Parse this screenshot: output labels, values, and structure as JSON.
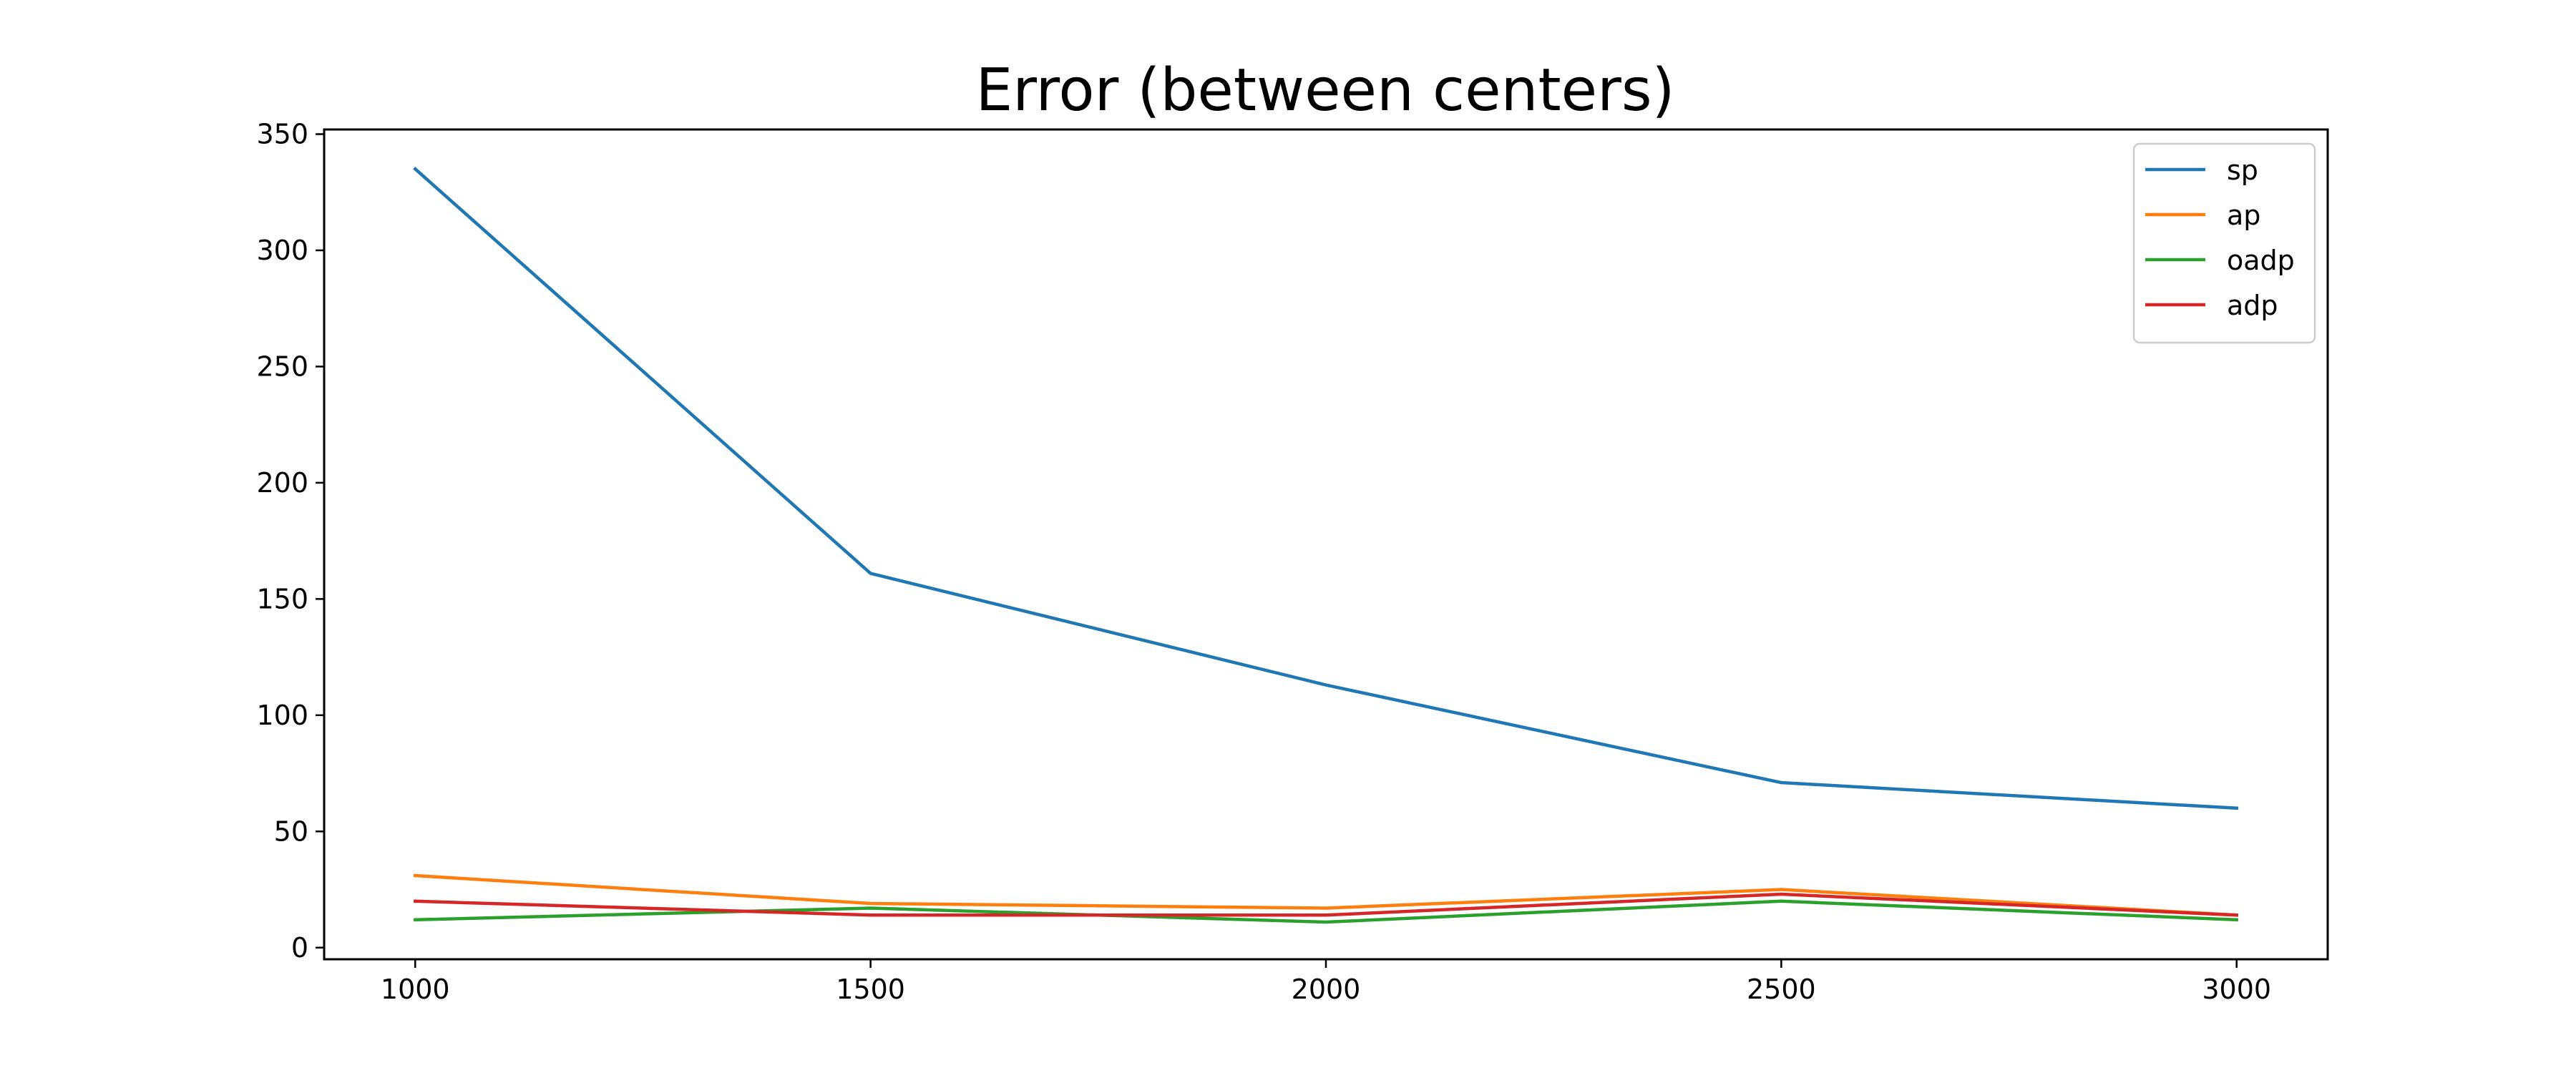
{
  "chart_data": {
    "type": "line",
    "title": "Error (between centers)",
    "xlabel": "",
    "ylabel": "",
    "x": [
      1000,
      1500,
      2000,
      2500,
      3000
    ],
    "xticks": [
      "1000",
      "1500",
      "2000",
      "2500",
      "3000"
    ],
    "yticks": [
      "0",
      "50",
      "100",
      "150",
      "200",
      "250",
      "300",
      "350"
    ],
    "xlim": [
      900,
      3100
    ],
    "ylim": [
      -5,
      352
    ],
    "grid": false,
    "legend_position": "top-right",
    "series": [
      {
        "name": "sp",
        "color": "#1f77b4",
        "values": [
          335,
          161,
          113,
          71,
          60
        ]
      },
      {
        "name": "ap",
        "color": "#ff7f0e",
        "values": [
          31,
          19,
          17,
          25,
          14
        ]
      },
      {
        "name": "oadp",
        "color": "#2ca02c",
        "values": [
          12,
          17,
          11,
          20,
          12
        ]
      },
      {
        "name": "adp",
        "color": "#d62728",
        "values": [
          20,
          14,
          14,
          23,
          14
        ]
      }
    ]
  }
}
